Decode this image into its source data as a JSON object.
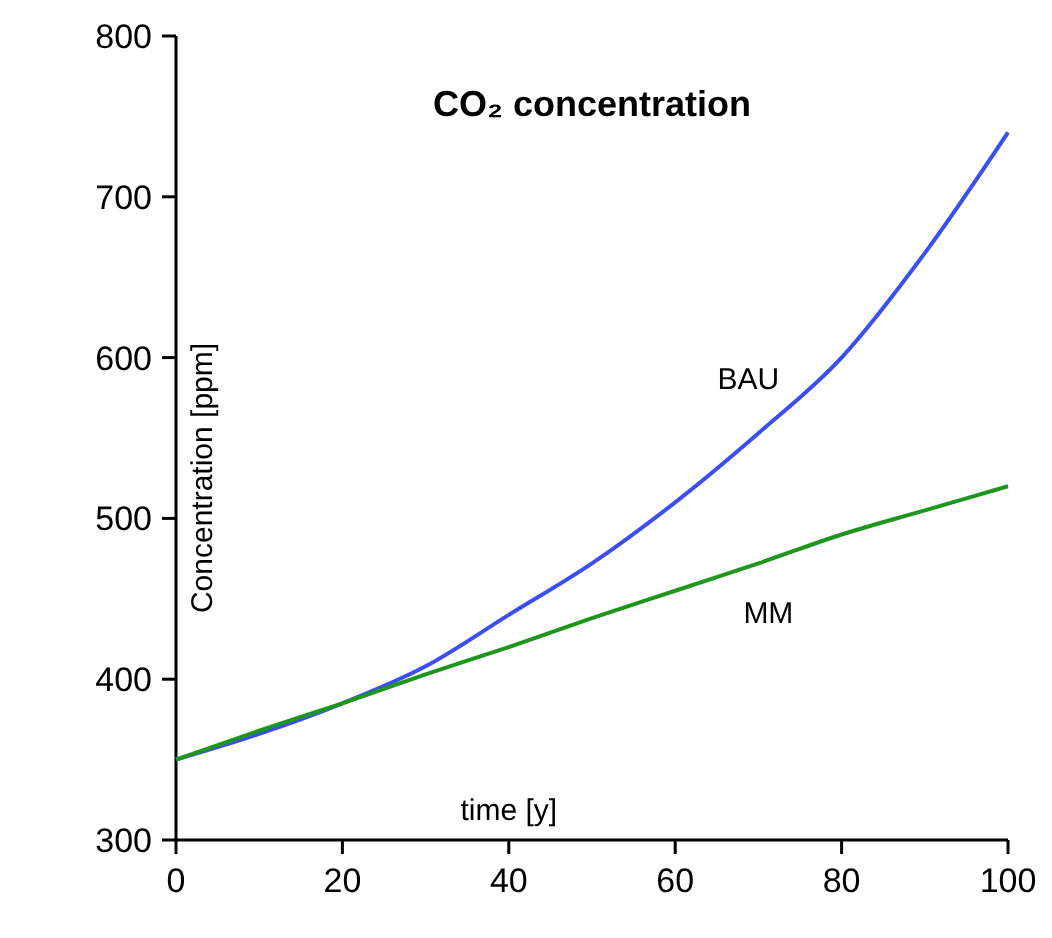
{
  "chart_data": {
    "type": "line",
    "title": "CO₂ concentration",
    "xlabel": "time [y]",
    "ylabel": "Concentration [ppm]",
    "x": [
      0,
      10,
      20,
      30,
      40,
      50,
      60,
      70,
      80,
      90,
      100
    ],
    "series": [
      {
        "name": "BAU",
        "color": "#3b4ff0",
        "values": [
          350,
          366,
          385,
          408,
          440,
          472,
          510,
          553,
          600,
          665,
          740
        ]
      },
      {
        "name": "MM",
        "color": "#1e961e",
        "values": [
          350,
          368,
          385,
          403,
          420,
          438,
          455,
          472,
          490,
          505,
          520
        ]
      }
    ],
    "xlim": [
      0,
      100
    ],
    "xticks": [
      0,
      20,
      40,
      60,
      80,
      100
    ],
    "ylim": [
      300,
      800
    ],
    "yticks": [
      300,
      400,
      500,
      600,
      700,
      800
    ],
    "grid": false,
    "marker": "none",
    "line_style": "solid"
  }
}
